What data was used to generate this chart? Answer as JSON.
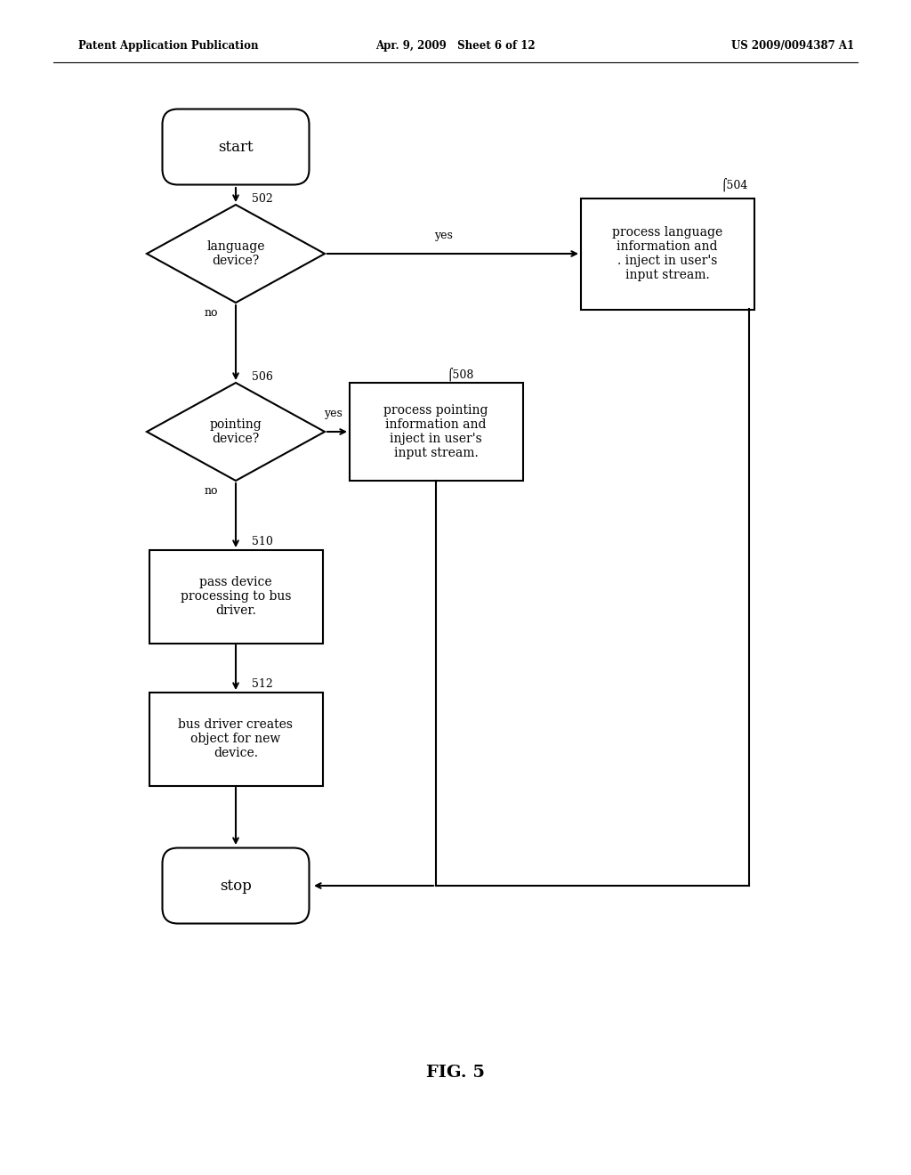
{
  "bg_color": "#ffffff",
  "header_left": "Patent Application Publication",
  "header_mid": "Apr. 9, 2009   Sheet 6 of 12",
  "header_right": "US 2009/0094387 A1",
  "fig_label": "FIG. 5",
  "start_text": "start",
  "stop_text": "stop",
  "diamond1_text": "language\ndevice?",
  "diamond1_label": "502",
  "diamond2_text": "pointing\ndevice?",
  "diamond2_label": "506",
  "box1_text": "process language\ninformation and\n. inject in user's\ninput stream.",
  "box1_label": "504",
  "box2_text": "process pointing\ninformation and\ninject in user's\ninput stream.",
  "box2_label": "508",
  "box3_text": "pass device\nprocessing to bus\ndriver.",
  "box3_label": "510",
  "box4_text": "bus driver creates\nobject for new\ndevice.",
  "box4_label": "512",
  "yes_label": "yes",
  "no_label": "no",
  "line_width": 1.5
}
